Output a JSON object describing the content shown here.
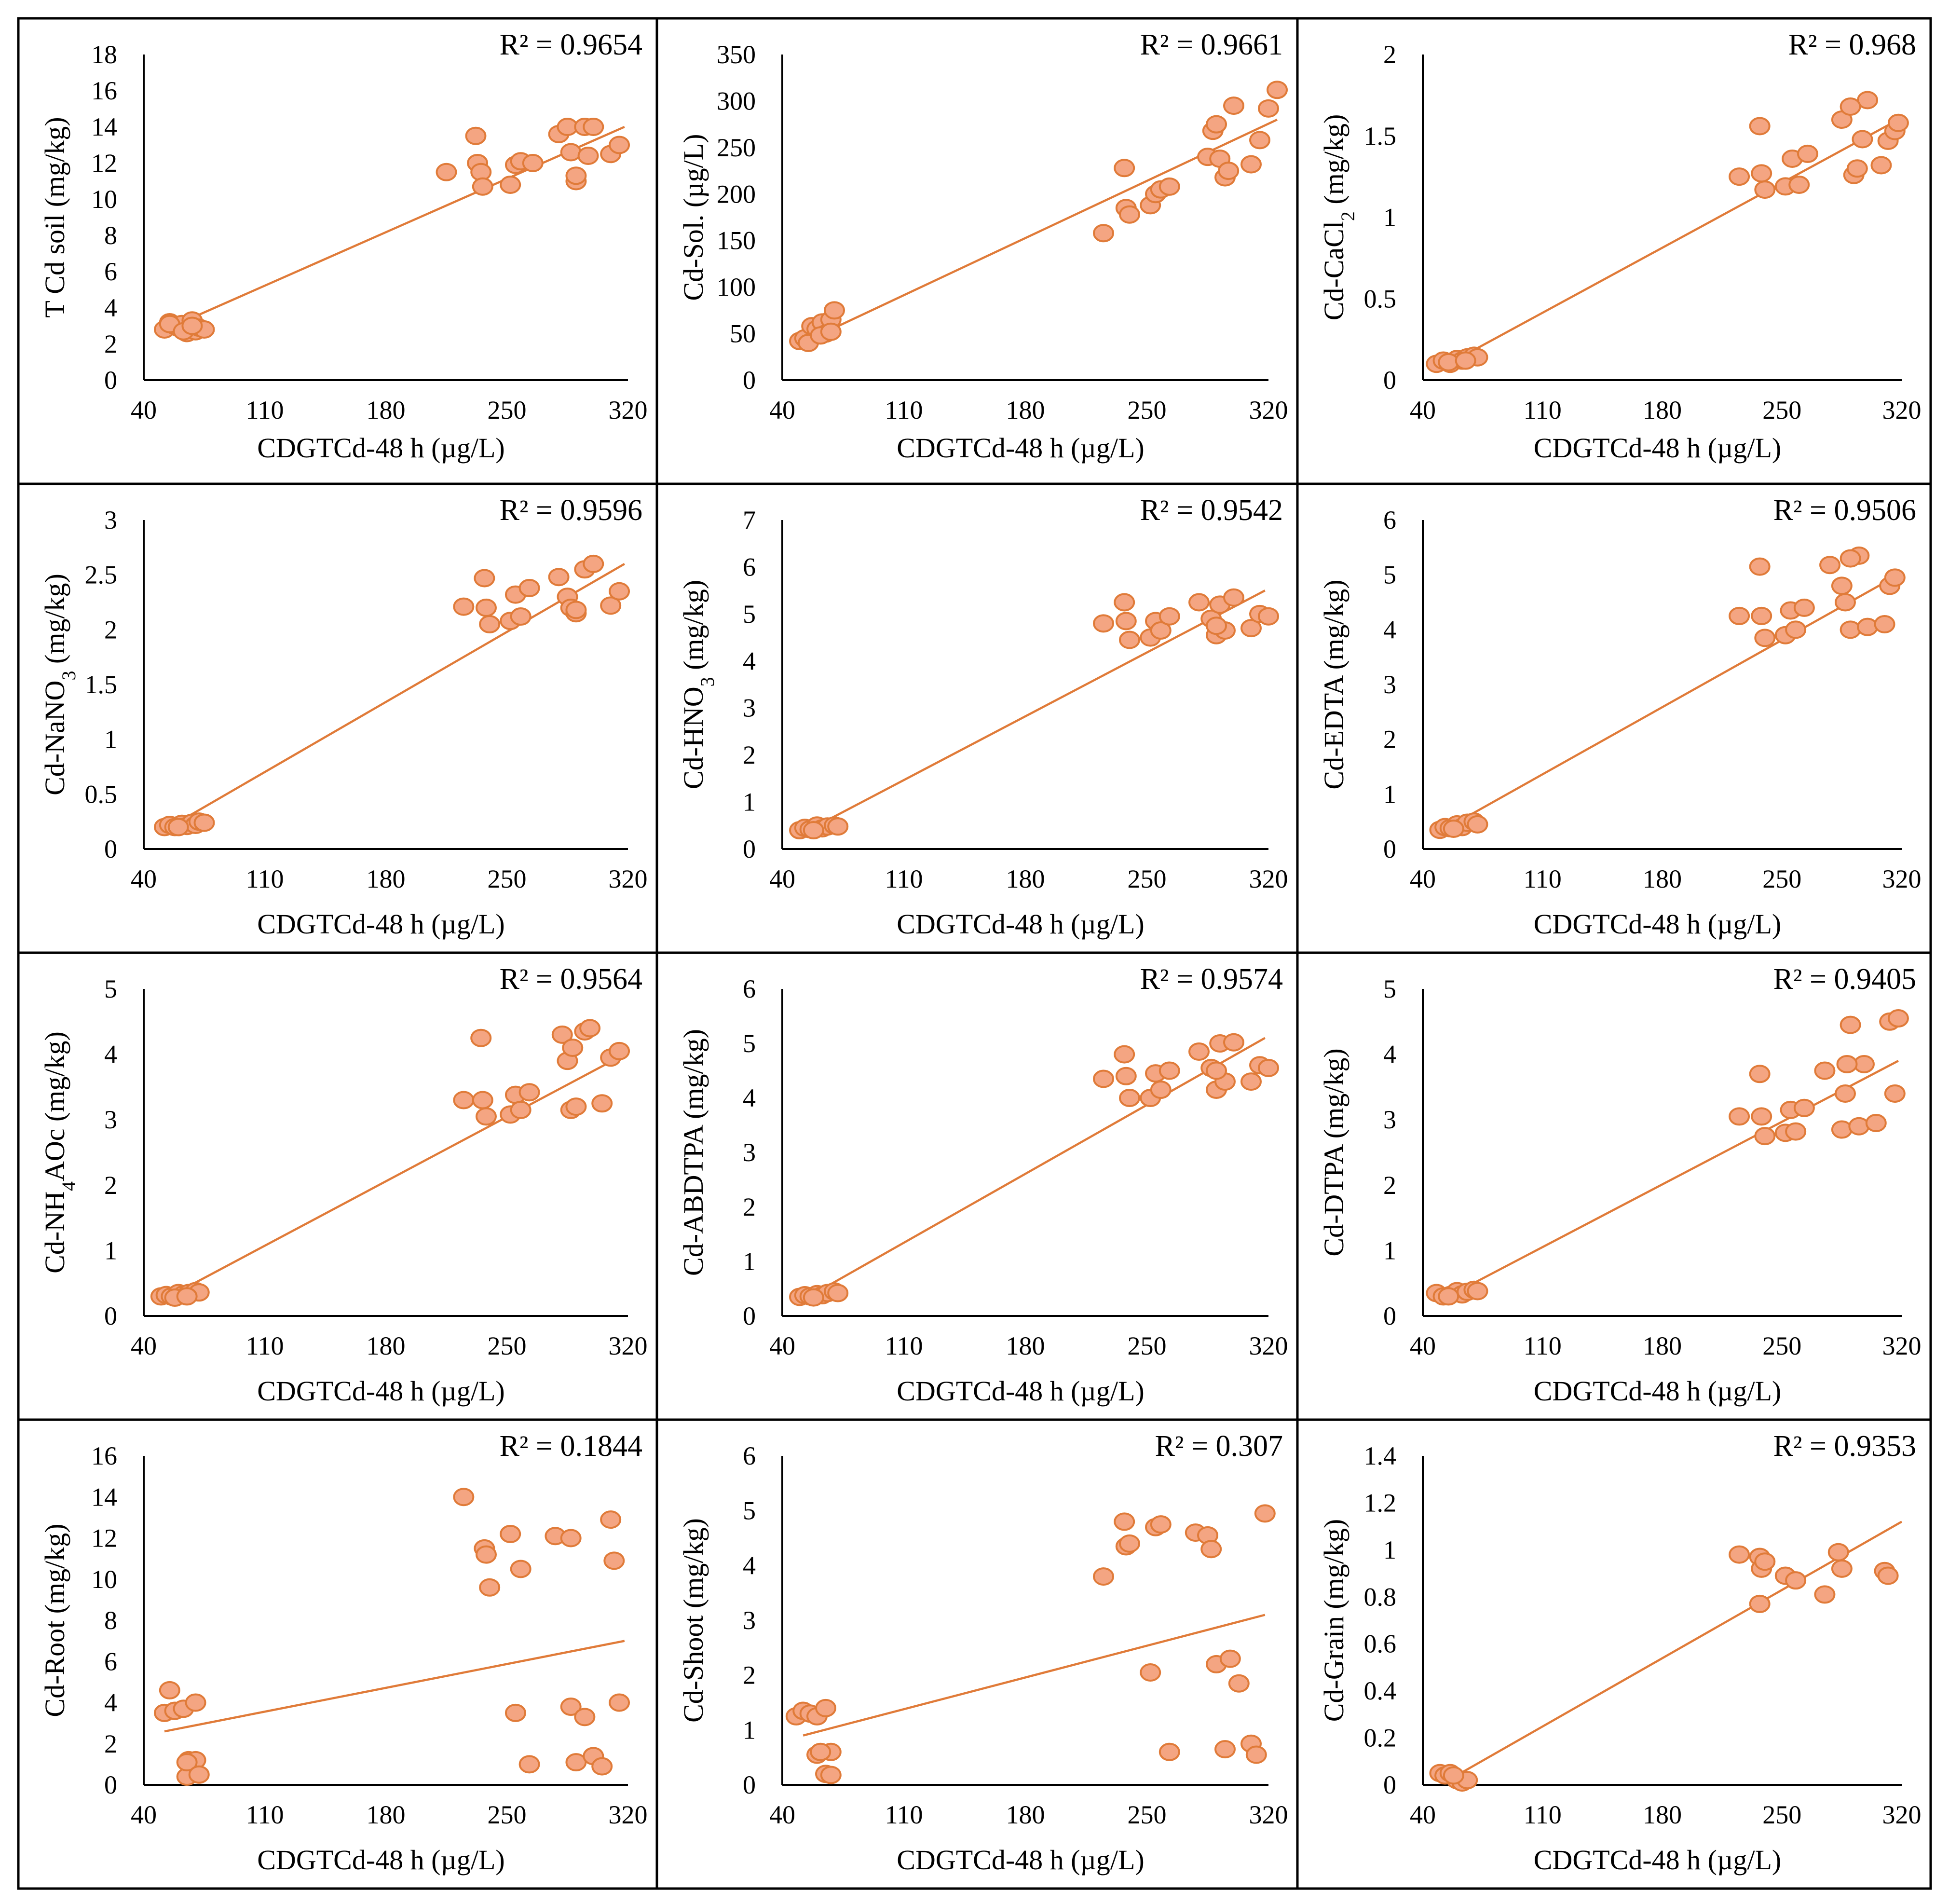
{
  "colors": {
    "marker_fill": "#F4A582",
    "marker_stroke": "#E07B39",
    "trendline": "#E07B39",
    "axis": "#000000",
    "border": "#000000"
  },
  "chart_data": [
    {
      "type": "scatter",
      "r2": "R² = 0.9654",
      "ylabel": "T Cd soil (mg/kg)",
      "xlabel": "CDGTCd-48 h (µg/L)",
      "xlim": [
        40,
        320
      ],
      "xticks": [
        "40",
        "110",
        "180",
        "250",
        "320"
      ],
      "ylim": [
        0,
        18
      ],
      "yticks": [
        "0",
        "2",
        "4",
        "6",
        "8",
        "10",
        "12",
        "14",
        "16",
        "18"
      ],
      "trendline": [
        [
          55,
          2.9
        ],
        [
          318,
          14.0
        ]
      ],
      "x": [
        52,
        55,
        58,
        60,
        62,
        65,
        68,
        70,
        72,
        75,
        55,
        63,
        68,
        215,
        232,
        233,
        235,
        236,
        252,
        255,
        258,
        265,
        280,
        285,
        287,
        290,
        295,
        297,
        300,
        310,
        315,
        290
      ],
      "y": [
        2.8,
        3.2,
        3.0,
        2.9,
        3.1,
        2.6,
        3.3,
        2.7,
        2.9,
        2.8,
        3.1,
        2.7,
        3.0,
        11.5,
        13.5,
        12.0,
        11.5,
        10.7,
        10.8,
        11.9,
        12.1,
        12.0,
        13.6,
        14.0,
        12.6,
        11.0,
        14.0,
        12.4,
        14.0,
        12.5,
        13.0,
        11.3
      ]
    },
    {
      "type": "scatter",
      "r2": "R² = 0.9661",
      "ylabel": "Cd-Sol. (µg/L)",
      "xlabel": "CDGTCd-48 h (µg/L)",
      "xlim": [
        40,
        320
      ],
      "xticks": [
        "40",
        "110",
        "180",
        "250",
        "320"
      ],
      "ylim": [
        0,
        350
      ],
      "yticks": [
        "0",
        "50",
        "100",
        "150",
        "200",
        "250",
        "300",
        "350"
      ],
      "trendline": [
        [
          55,
          43
        ],
        [
          325,
          280
        ]
      ],
      "x": [
        50,
        53,
        57,
        60,
        63,
        65,
        68,
        70,
        55,
        62,
        68,
        225,
        237,
        238,
        240,
        252,
        255,
        258,
        263,
        285,
        288,
        292,
        295,
        297,
        300,
        310,
        315,
        320,
        325,
        290
      ],
      "y": [
        42,
        45,
        58,
        55,
        62,
        50,
        65,
        75,
        40,
        48,
        52,
        158,
        228,
        185,
        178,
        188,
        200,
        205,
        208,
        240,
        268,
        238,
        218,
        225,
        295,
        232,
        258,
        292,
        312,
        275
      ]
    },
    {
      "type": "scatter",
      "r2": "R² = 0.968",
      "ylabel": "Cd-CaCl2 (mg/kg)",
      "xlabel": "CDGTCd-48 h (µg/L)",
      "xlim": [
        40,
        320
      ],
      "xticks": [
        "40",
        "110",
        "180",
        "250",
        "320"
      ],
      "ylim": [
        0,
        2
      ],
      "yticks": [
        "0",
        "0.5",
        "1",
        "1.5",
        "2"
      ],
      "trendline": [
        [
          55,
          0.1
        ],
        [
          318,
          1.6
        ]
      ],
      "x": [
        48,
        52,
        56,
        60,
        63,
        66,
        70,
        72,
        55,
        65,
        225,
        237,
        238,
        240,
        252,
        256,
        260,
        265,
        285,
        292,
        294,
        297,
        300,
        308,
        312,
        316,
        318,
        290
      ],
      "y": [
        0.1,
        0.12,
        0.1,
        0.13,
        0.12,
        0.14,
        0.15,
        0.14,
        0.11,
        0.12,
        1.25,
        1.56,
        1.27,
        1.17,
        1.19,
        1.36,
        1.2,
        1.39,
        1.6,
        1.26,
        1.3,
        1.48,
        1.72,
        1.32,
        1.47,
        1.53,
        1.58,
        1.68
      ]
    },
    {
      "type": "scatter",
      "r2": "R² = 0.9596",
      "ylabel": "Cd-NaNO3 (mg/kg)",
      "xlabel": "CDGTCd-48 h (µg/L)",
      "xlim": [
        40,
        320
      ],
      "xticks": [
        "40",
        "110",
        "180",
        "250",
        "320"
      ],
      "ylim": [
        0,
        3
      ],
      "yticks": [
        "0",
        "0.5",
        "1",
        "1.5",
        "2",
        "2.5",
        "3"
      ],
      "trendline": [
        [
          55,
          0.2
        ],
        [
          318,
          2.6
        ]
      ],
      "x": [
        52,
        55,
        58,
        62,
        65,
        68,
        70,
        72,
        75,
        60,
        225,
        237,
        238,
        240,
        252,
        255,
        258,
        263,
        280,
        285,
        287,
        290,
        295,
        300,
        310,
        315,
        290
      ],
      "y": [
        0.2,
        0.22,
        0.2,
        0.23,
        0.21,
        0.24,
        0.22,
        0.25,
        0.24,
        0.2,
        2.21,
        2.47,
        2.2,
        2.05,
        2.08,
        2.32,
        2.12,
        2.38,
        2.48,
        2.3,
        2.2,
        2.15,
        2.55,
        2.6,
        2.22,
        2.35,
        2.18
      ]
    },
    {
      "type": "scatter",
      "r2": "R² = 0.9542",
      "ylabel": "Cd-HNO3 (mg/kg)",
      "xlabel": "CDGTCd-48 h (µg/L)",
      "xlim": [
        40,
        320
      ],
      "xticks": [
        "40",
        "110",
        "180",
        "250",
        "320"
      ],
      "ylim": [
        0,
        7
      ],
      "yticks": [
        "0",
        "1",
        "2",
        "3",
        "4",
        "5",
        "6",
        "7"
      ],
      "trendline": [
        [
          55,
          0.4
        ],
        [
          318,
          5.5
        ]
      ],
      "x": [
        50,
        53,
        56,
        60,
        63,
        66,
        70,
        72,
        58,
        225,
        237,
        238,
        240,
        252,
        255,
        258,
        263,
        280,
        287,
        290,
        292,
        295,
        300,
        310,
        315,
        320,
        290
      ],
      "y": [
        0.4,
        0.45,
        0.42,
        0.5,
        0.44,
        0.48,
        0.5,
        0.48,
        0.4,
        4.8,
        5.25,
        4.85,
        4.45,
        4.5,
        4.85,
        4.65,
        4.95,
        5.25,
        4.9,
        4.55,
        5.2,
        4.65,
        5.35,
        4.7,
        5.0,
        4.95,
        4.75
      ]
    },
    {
      "type": "scatter",
      "r2": "R² = 0.9506",
      "ylabel": "Cd-EDTA (mg/kg)",
      "xlabel": "CDGTCd-48 h (µg/L)",
      "xlim": [
        40,
        320
      ],
      "xticks": [
        "40",
        "110",
        "180",
        "250",
        "320"
      ],
      "ylim": [
        0,
        6
      ],
      "yticks": [
        "0",
        "1",
        "2",
        "3",
        "4",
        "5",
        "6"
      ],
      "trendline": [
        [
          55,
          0.4
        ],
        [
          318,
          5.0
        ]
      ],
      "x": [
        50,
        53,
        56,
        60,
        63,
        66,
        70,
        72,
        58,
        225,
        237,
        238,
        240,
        252,
        255,
        258,
        263,
        278,
        285,
        287,
        290,
        295,
        300,
        310,
        313,
        316,
        290
      ],
      "y": [
        0.35,
        0.4,
        0.38,
        0.45,
        0.4,
        0.48,
        0.5,
        0.45,
        0.37,
        4.25,
        5.15,
        4.25,
        3.85,
        3.9,
        4.35,
        4.0,
        4.4,
        5.18,
        4.8,
        4.5,
        4.0,
        5.35,
        4.05,
        4.1,
        4.8,
        4.95,
        5.3
      ]
    },
    {
      "type": "scatter",
      "r2": "R² = 0.9564",
      "ylabel": "Cd-NH4AOc (mg/kg)",
      "xlabel": "CDGTCd-48 h (µg/L)",
      "xlim": [
        40,
        320
      ],
      "xticks": [
        "40",
        "110",
        "180",
        "250",
        "320"
      ],
      "ylim": [
        0,
        5
      ],
      "yticks": [
        "0",
        "1",
        "2",
        "3",
        "4",
        "5"
      ],
      "trendline": [
        [
          55,
          0.3
        ],
        [
          318,
          4.0
        ]
      ],
      "x": [
        50,
        53,
        56,
        60,
        63,
        66,
        70,
        72,
        58,
        65,
        225,
        235,
        236,
        238,
        252,
        255,
        258,
        263,
        282,
        285,
        287,
        290,
        295,
        298,
        305,
        310,
        315,
        288
      ],
      "y": [
        0.3,
        0.32,
        0.3,
        0.35,
        0.33,
        0.35,
        0.38,
        0.36,
        0.28,
        0.3,
        3.3,
        4.25,
        3.3,
        3.05,
        3.08,
        3.38,
        3.15,
        3.42,
        4.3,
        3.9,
        3.15,
        3.2,
        4.35,
        4.4,
        3.25,
        3.95,
        4.05,
        4.1
      ]
    },
    {
      "type": "scatter",
      "r2": "R² = 0.9574",
      "ylabel": "Cd-ABDTPA (mg/kg)",
      "xlabel": "CDGTCd-48 h (µg/L)",
      "xlim": [
        40,
        320
      ],
      "xticks": [
        "40",
        "110",
        "180",
        "250",
        "320"
      ],
      "ylim": [
        0,
        6
      ],
      "yticks": [
        "0",
        "1",
        "2",
        "3",
        "4",
        "5",
        "6"
      ],
      "trendline": [
        [
          55,
          0.35
        ],
        [
          318,
          5.1
        ]
      ],
      "x": [
        50,
        53,
        56,
        60,
        63,
        66,
        70,
        72,
        58,
        225,
        237,
        238,
        240,
        252,
        255,
        258,
        263,
        280,
        287,
        290,
        292,
        295,
        300,
        310,
        315,
        320,
        290
      ],
      "y": [
        0.35,
        0.38,
        0.36,
        0.4,
        0.38,
        0.42,
        0.45,
        0.42,
        0.34,
        4.35,
        4.8,
        4.4,
        4.0,
        4.0,
        4.45,
        4.15,
        4.5,
        4.85,
        4.55,
        4.15,
        5.0,
        4.3,
        5.02,
        4.3,
        4.6,
        4.55,
        4.5
      ]
    },
    {
      "type": "scatter",
      "r2": "R² = 0.9405",
      "ylabel": "Cd-DTPA (mg/kg)",
      "xlabel": "CDGTCd-48 h (µg/L)",
      "xlim": [
        40,
        320
      ],
      "xticks": [
        "40",
        "110",
        "180",
        "250",
        "320"
      ],
      "ylim": [
        0,
        5
      ],
      "yticks": [
        "0",
        "1",
        "2",
        "3",
        "4",
        "5"
      ],
      "trendline": [
        [
          55,
          0.3
        ],
        [
          318,
          3.9
        ]
      ],
      "x": [
        48,
        52,
        56,
        60,
        63,
        66,
        70,
        72,
        55,
        225,
        237,
        238,
        240,
        252,
        255,
        258,
        263,
        275,
        285,
        287,
        290,
        295,
        298,
        305,
        313,
        316,
        318,
        288
      ],
      "y": [
        0.35,
        0.3,
        0.32,
        0.38,
        0.33,
        0.37,
        0.4,
        0.38,
        0.3,
        3.05,
        3.7,
        3.05,
        2.75,
        2.8,
        3.15,
        2.82,
        3.18,
        3.75,
        2.85,
        3.4,
        4.45,
        2.9,
        3.85,
        2.95,
        4.5,
        3.4,
        4.55,
        3.85
      ]
    },
    {
      "type": "scatter",
      "r2": "R² = 0.1844",
      "ylabel": "Cd-Root (mg/kg)",
      "xlabel": "CDGTCd-48 h (µg/L)",
      "xlim": [
        40,
        320
      ],
      "xticks": [
        "40",
        "110",
        "180",
        "250",
        "320"
      ],
      "ylim": [
        0,
        16
      ],
      "yticks": [
        "0",
        "2",
        "4",
        "6",
        "8",
        "10",
        "12",
        "14",
        "16"
      ],
      "trendline": [
        [
          52,
          2.6
        ],
        [
          318,
          7.0
        ]
      ],
      "x": [
        52,
        55,
        58,
        63,
        66,
        70,
        65,
        70,
        65,
        72,
        225,
        237,
        238,
        240,
        252,
        255,
        258,
        263,
        278,
        287,
        290,
        295,
        300,
        305,
        310,
        312,
        315,
        287
      ],
      "y": [
        3.5,
        4.6,
        3.6,
        3.7,
        1.2,
        4.0,
        0.4,
        1.2,
        1.1,
        0.5,
        14.0,
        11.5,
        11.2,
        9.6,
        12.2,
        3.5,
        10.5,
        1.0,
        12.1,
        3.8,
        1.1,
        3.3,
        1.4,
        0.9,
        12.9,
        10.9,
        4.0,
        12.0
      ]
    },
    {
      "type": "scatter",
      "r2": "R² = 0.307",
      "ylabel": "Cd-Shoot (mg/kg)",
      "xlabel": "CDGTCd-48 h (µg/L)",
      "xlim": [
        40,
        320
      ],
      "xticks": [
        "40",
        "110",
        "180",
        "250",
        "320"
      ],
      "ylim": [
        0,
        6
      ],
      "yticks": [
        "0",
        "1",
        "2",
        "3",
        "4",
        "5",
        "6"
      ],
      "trendline": [
        [
          52,
          0.9
        ],
        [
          318,
          3.1
        ]
      ],
      "x": [
        48,
        52,
        56,
        60,
        65,
        68,
        60,
        65,
        68,
        62,
        225,
        237,
        238,
        240,
        252,
        255,
        258,
        263,
        278,
        285,
        287,
        290,
        295,
        298,
        303,
        310,
        313,
        318
      ],
      "y": [
        1.25,
        1.35,
        1.3,
        1.25,
        1.4,
        0.6,
        0.55,
        0.2,
        0.18,
        0.6,
        3.8,
        4.8,
        4.35,
        4.4,
        2.05,
        4.7,
        4.75,
        0.6,
        4.6,
        4.55,
        4.3,
        2.2,
        0.65,
        2.3,
        1.85,
        0.75,
        0.55,
        4.95
      ]
    },
    {
      "type": "scatter",
      "r2": "R² = 0.9353",
      "ylabel": "Cd-Grain (mg/kg)",
      "xlabel": "CDGTCd-48 h (µg/L)",
      "xlim": [
        40,
        320
      ],
      "xticks": [
        "40",
        "110",
        "180",
        "250",
        "320"
      ],
      "ylim": [
        0,
        1.4
      ],
      "yticks": [
        "0",
        "0.2",
        "0.4",
        "0.6",
        "0.8",
        "1",
        "1.2",
        "1.4"
      ],
      "trendline": [
        [
          55,
          0.02
        ],
        [
          320,
          1.12
        ]
      ],
      "x": [
        50,
        53,
        56,
        60,
        63,
        66,
        58,
        225,
        237,
        238,
        240,
        252,
        258,
        275,
        283,
        285,
        310,
        312,
        237
      ],
      "y": [
        0.05,
        0.04,
        0.05,
        0.02,
        0.01,
        0.02,
        0.04,
        0.98,
        0.97,
        0.92,
        0.95,
        0.89,
        0.87,
        0.81,
        0.99,
        0.92,
        0.91,
        0.89,
        0.77
      ]
    }
  ]
}
